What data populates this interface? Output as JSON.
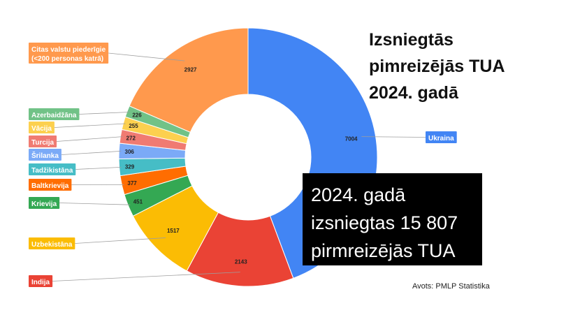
{
  "title_lines": [
    "Izsniegtās",
    "pimreizējās TUA",
    "2024. gadā"
  ],
  "callout_lines": [
    "2024. gadā",
    "izsniegtas 15 807",
    "pirmreizējās TUA"
  ],
  "source": "Avots: PMLP Statistika",
  "chart_data": {
    "type": "pie",
    "donut": true,
    "categories": [
      "Ukraina",
      "Indija",
      "Uzbekistāna",
      "Krievija",
      "Baltkrievija",
      "Tadžikistāna",
      "Šrilanka",
      "Turcija",
      "Vācija",
      "Azerbaidžāna",
      "Citas valstu piederīgie (<200 personas katrā)"
    ],
    "label_lines": [
      [
        "Ukraina"
      ],
      [
        "Indija"
      ],
      [
        "Uzbekistāna"
      ],
      [
        "Krievija"
      ],
      [
        "Baltkrievija"
      ],
      [
        "Tadžikistāna"
      ],
      [
        "Šrilanka"
      ],
      [
        "Turcija"
      ],
      [
        "Vācija"
      ],
      [
        "Azerbaidžāna"
      ],
      [
        "Citas valstu piederīgie",
        "(<200 personas katrā)"
      ]
    ],
    "values": [
      7004,
      2143,
      1517,
      451,
      377,
      329,
      306,
      272,
      255,
      226,
      2927
    ],
    "colors": [
      "#4285F4",
      "#EA4335",
      "#FBBC04",
      "#34A853",
      "#FF6D01",
      "#46BDC6",
      "#7BAAF7",
      "#F07B72",
      "#FCD04F",
      "#71C287",
      "#FF994D"
    ],
    "legend": "labels-beside"
  }
}
